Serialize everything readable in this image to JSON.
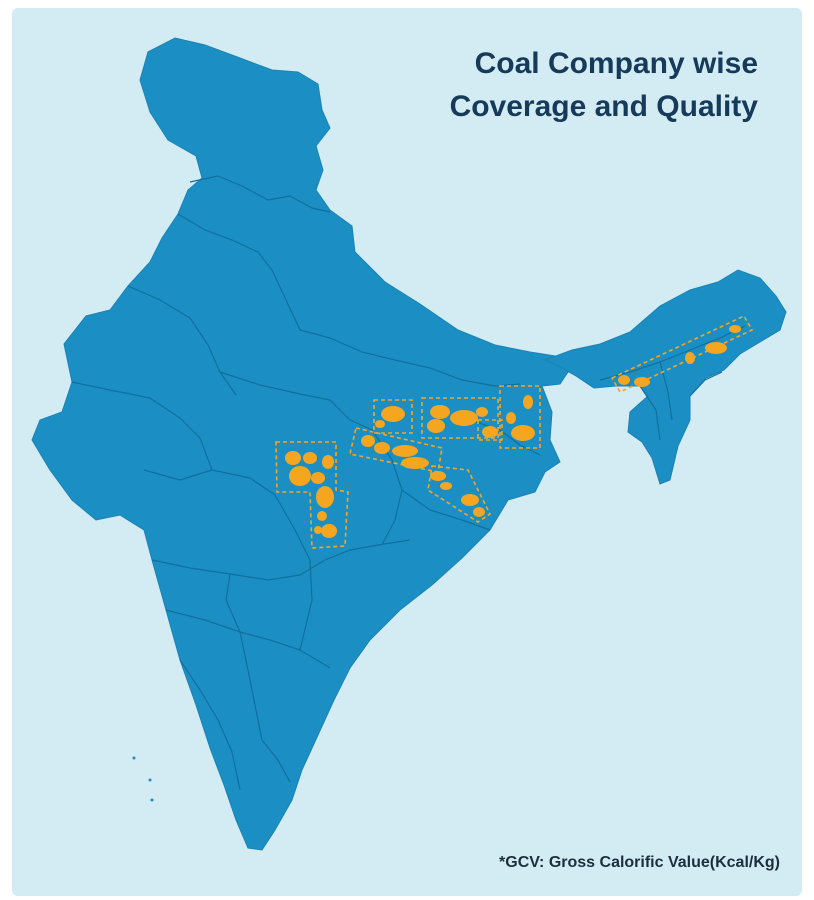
{
  "title": {
    "line1": "Coal Company wise",
    "line2": "Coverage and Quality"
  },
  "footnote": "*GCV: Gross Calorific Value(Kcal/Kg)",
  "colors": {
    "background": "#d3ebf3",
    "land": "#1b8fc4",
    "borders": "#126f9c",
    "coalfields": "#f4a620",
    "region_outline": "#f4a620",
    "title_text": "#153a5a"
  }
}
